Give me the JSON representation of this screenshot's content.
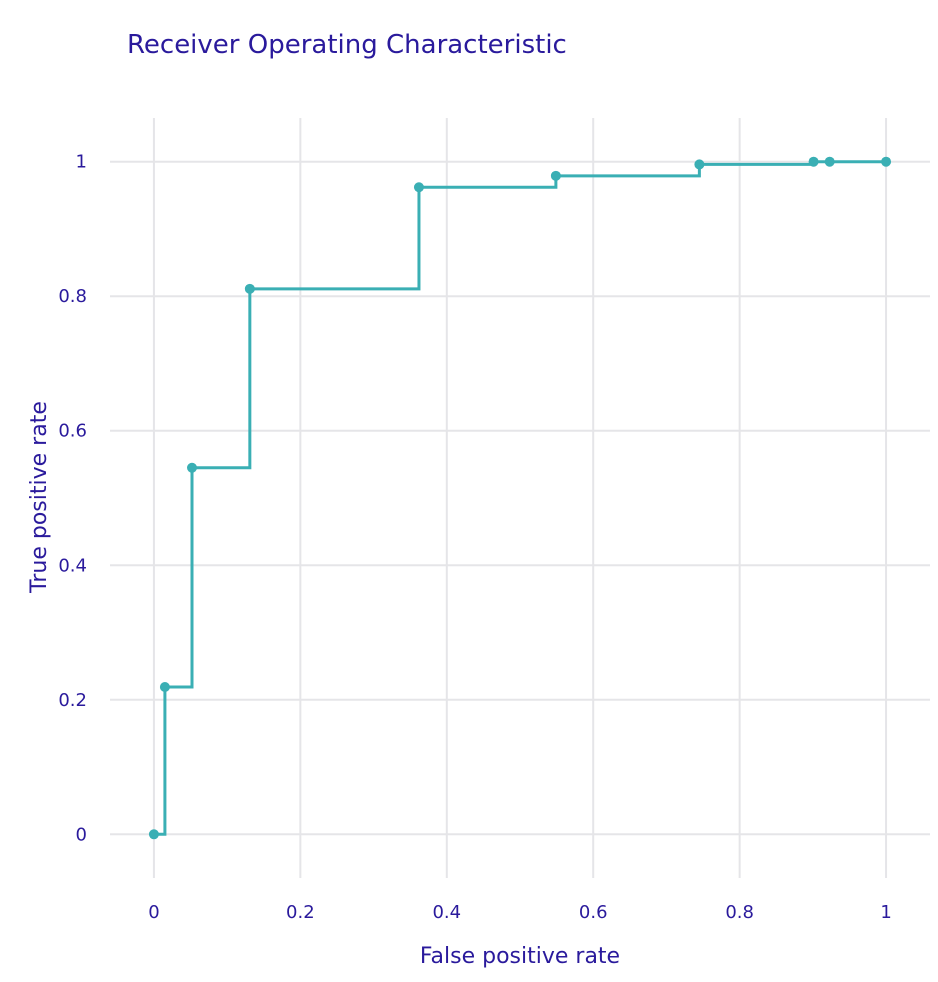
{
  "chart_data": {
    "type": "line",
    "title": "Receiver Operating Characteristic",
    "xlabel": "False positive rate",
    "ylabel": "True positive rate",
    "xlim": [
      -0.06,
      1.06
    ],
    "ylim": [
      -0.065,
      1.065
    ],
    "xticks": [
      0,
      0.2,
      0.4,
      0.6,
      0.8,
      1
    ],
    "xtick_labels": [
      "0",
      "0.2",
      "0.4",
      "0.6",
      "0.8",
      "1"
    ],
    "yticks": [
      0,
      0.2,
      0.4,
      0.6,
      0.8,
      1
    ],
    "ytick_labels": [
      "0",
      "0.2",
      "0.4",
      "0.6",
      "0.8",
      "1"
    ],
    "grid": true,
    "step": "hv",
    "series": [
      {
        "color": "#3aafb4",
        "x": [
          0,
          0.015,
          0.052,
          0.131,
          0.362,
          0.549,
          0.745,
          0.901,
          0.923,
          1
        ],
        "y": [
          0,
          0.219,
          0.545,
          0.811,
          0.962,
          0.979,
          0.996,
          1.0,
          1.0,
          1.0
        ]
      }
    ]
  }
}
